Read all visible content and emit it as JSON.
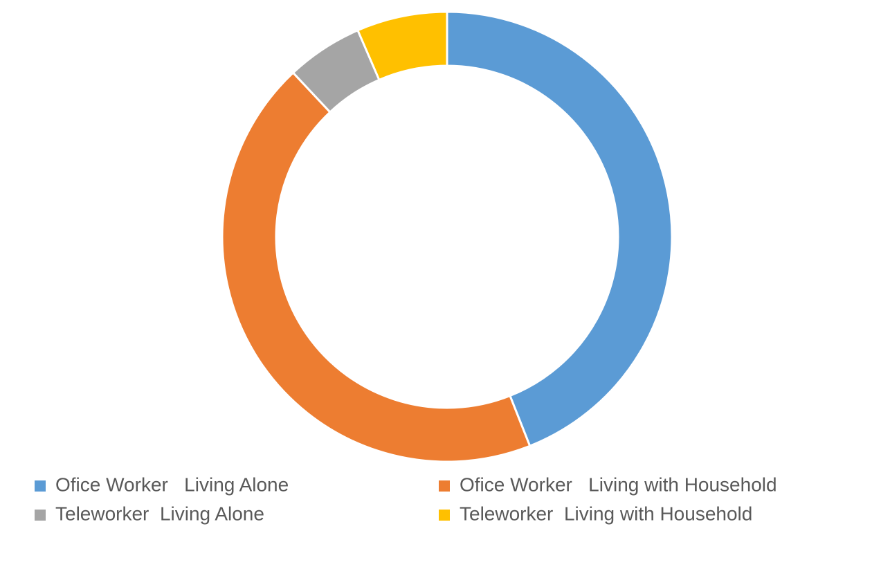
{
  "chart_data": {
    "type": "donut",
    "categories": [
      "Ofice Worker   Living Alone",
      "Ofice Worker   Living with Household",
      "Teleworker  Living Alone",
      "Teleworker  Living with Household"
    ],
    "values": [
      44,
      44,
      5.5,
      6.5
    ],
    "colors": [
      "#5b9bd5",
      "#ed7d31",
      "#a5a5a5",
      "#ffc000"
    ],
    "legend": "bottom"
  }
}
